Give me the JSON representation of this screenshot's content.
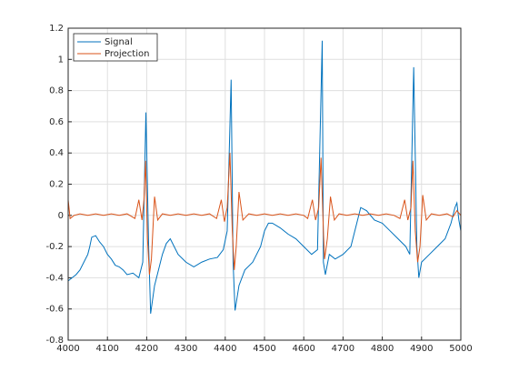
{
  "chart_data": {
    "type": "line",
    "xlim": [
      4000,
      5000
    ],
    "xticks": [
      4000,
      4100,
      4200,
      4300,
      4400,
      4500,
      4600,
      4700,
      4800,
      4900,
      5000
    ],
    "ylim": [
      -0.8,
      1.2
    ],
    "yticks": [
      -0.8,
      -0.6,
      -0.4,
      -0.2,
      0,
      0.2,
      0.4,
      0.6,
      0.8,
      1,
      1.2
    ],
    "grid": true,
    "legend": "upper-left",
    "series": [
      {
        "name": "Signal",
        "color": "#0072BD",
        "x": [
          4000,
          4010,
          4020,
          4030,
          4040,
          4050,
          4055,
          4060,
          4070,
          4080,
          4090,
          4100,
          4110,
          4120,
          4130,
          4140,
          4150,
          4165,
          4180,
          4190,
          4198,
          4205,
          4210,
          4220,
          4230,
          4240,
          4250,
          4260,
          4270,
          4280,
          4300,
          4320,
          4340,
          4360,
          4380,
          4395,
          4405,
          4415,
          4420,
          4425,
          4435,
          4450,
          4470,
          4490,
          4500,
          4510,
          4520,
          4540,
          4560,
          4580,
          4600,
          4620,
          4635,
          4647,
          4650,
          4655,
          4665,
          4680,
          4700,
          4720,
          4730,
          4745,
          4760,
          4780,
          4800,
          4820,
          4840,
          4860,
          4870,
          4880,
          4888,
          4893,
          4900,
          4920,
          4940,
          4960,
          4975,
          4985,
          4990,
          4995,
          5000
        ],
        "values": [
          -0.42,
          -0.4,
          -0.38,
          -0.35,
          -0.3,
          -0.25,
          -0.2,
          -0.14,
          -0.13,
          -0.17,
          -0.2,
          -0.25,
          -0.28,
          -0.32,
          -0.33,
          -0.35,
          -0.38,
          -0.37,
          -0.4,
          -0.3,
          0.66,
          -0.2,
          -0.63,
          -0.45,
          -0.35,
          -0.25,
          -0.18,
          -0.15,
          -0.2,
          -0.25,
          -0.3,
          -0.33,
          -0.3,
          -0.28,
          -0.27,
          -0.22,
          -0.1,
          0.87,
          -0.3,
          -0.61,
          -0.45,
          -0.35,
          -0.3,
          -0.2,
          -0.1,
          -0.05,
          -0.05,
          -0.08,
          -0.12,
          -0.15,
          -0.2,
          -0.25,
          -0.22,
          1.12,
          -0.3,
          -0.38,
          -0.25,
          -0.28,
          -0.25,
          -0.2,
          -0.1,
          0.05,
          0.03,
          -0.03,
          -0.05,
          -0.1,
          -0.15,
          -0.2,
          -0.25,
          0.95,
          -0.2,
          -0.4,
          -0.3,
          -0.25,
          -0.2,
          -0.15,
          -0.05,
          0.05,
          0.08,
          -0.03,
          -0.1
        ]
      },
      {
        "name": "Projection",
        "color": "#D95319",
        "x": [
          4000,
          4005,
          4015,
          4030,
          4050,
          4070,
          4090,
          4110,
          4130,
          4150,
          4170,
          4180,
          4188,
          4193,
          4197,
          4202,
          4207,
          4212,
          4220,
          4228,
          4240,
          4260,
          4280,
          4300,
          4320,
          4340,
          4360,
          4378,
          4390,
          4398,
          4405,
          4412,
          4418,
          4423,
          4428,
          4435,
          4445,
          4460,
          4480,
          4500,
          4520,
          4540,
          4560,
          4580,
          4600,
          4610,
          4622,
          4630,
          4638,
          4644,
          4650,
          4653,
          4660,
          4668,
          4678,
          4690,
          4710,
          4730,
          4750,
          4770,
          4790,
          4810,
          4830,
          4845,
          4857,
          4865,
          4873,
          4878,
          4884,
          4890,
          4896,
          4903,
          4912,
          4925,
          4945,
          4965,
          4980,
          4990,
          5000
        ],
        "values": [
          0.1,
          -0.02,
          0,
          0.01,
          0,
          0.01,
          0,
          0.01,
          0,
          0.01,
          -0.02,
          0.1,
          -0.03,
          0.1,
          0.35,
          -0.15,
          -0.38,
          -0.28,
          0.12,
          -0.03,
          0.01,
          0,
          0.01,
          0,
          0.01,
          0,
          0.01,
          -0.02,
          0.1,
          -0.04,
          0.05,
          0.4,
          -0.1,
          -0.35,
          -0.2,
          0.15,
          -0.03,
          0.01,
          0,
          0.01,
          0,
          0.01,
          0,
          0.01,
          0,
          -0.02,
          0.1,
          -0.03,
          0.05,
          0.37,
          -0.1,
          -0.28,
          -0.15,
          0.12,
          -0.03,
          0.01,
          0,
          0.01,
          0,
          0.01,
          0,
          0.01,
          0,
          -0.02,
          0.1,
          -0.03,
          0.05,
          0.35,
          -0.1,
          -0.3,
          -0.2,
          0.13,
          -0.03,
          0.01,
          0,
          0.01,
          -0.01,
          0.03,
          0
        ]
      }
    ]
  }
}
